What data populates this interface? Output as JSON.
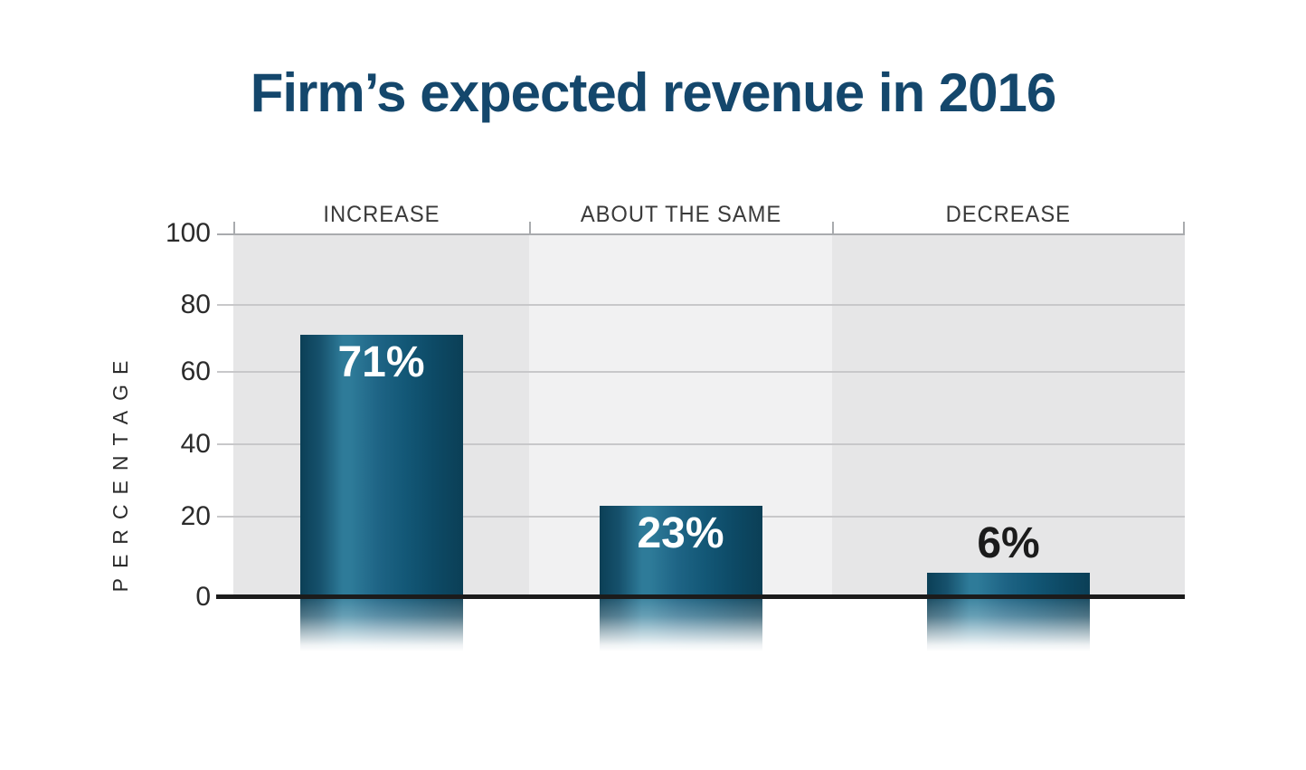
{
  "chart_data": {
    "type": "bar",
    "title": "Firm’s expected revenue in 2016",
    "categories": [
      "INCREASE",
      "ABOUT THE SAME",
      "DECREASE"
    ],
    "values": [
      71,
      23,
      6
    ],
    "data_labels": [
      "71%",
      "23%",
      "6%"
    ],
    "xlabel": "",
    "ylabel": "PERCENTAGE",
    "ylim": [
      0,
      100
    ],
    "yticks": [
      0,
      20,
      40,
      60,
      80,
      100
    ],
    "grid": true,
    "legend": false,
    "colors": {
      "title_text": "#14476C",
      "bar_edge": "#0B3F56",
      "bar_highlight": "#2E7B99",
      "bar_label_inside": "#FFFFFF",
      "bar_label_outside": "#1B1B1B",
      "column_bg_odd": "#E6E6E7",
      "column_bg_even": "#F1F1F2",
      "gridline": "#C8C8CA",
      "plot_border": "#A9ABAE",
      "axis_line": "#1B1B1B",
      "tick_text": "#2B2B2B",
      "header_text": "#3A3A3A"
    }
  }
}
